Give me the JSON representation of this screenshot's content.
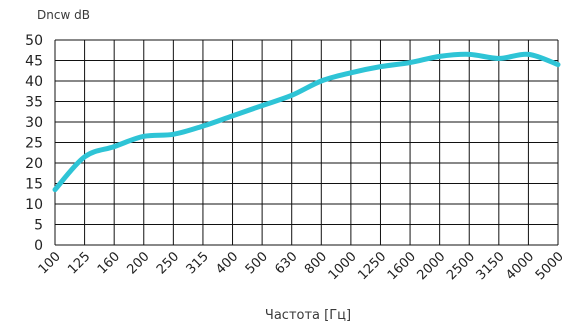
{
  "chart_data": {
    "type": "line",
    "ylabel": "Dncw dB",
    "xlabel": "Частота [Гц]",
    "categories": [
      "100",
      "125",
      "160",
      "200",
      "250",
      "315",
      "400",
      "500",
      "630",
      "800",
      "1000",
      "1250",
      "1600",
      "2000",
      "2500",
      "3150",
      "4000",
      "5000"
    ],
    "ylim": [
      0,
      50
    ],
    "yticks": [
      0,
      5,
      10,
      15,
      20,
      25,
      30,
      35,
      40,
      45,
      50
    ],
    "grid": true,
    "series": [
      {
        "values": [
          13.5,
          21.5,
          24,
          26.5,
          27,
          29,
          31.5,
          34,
          36.5,
          40,
          42,
          43.5,
          44.5,
          46,
          46.5,
          45.5,
          46.5,
          44
        ]
      }
    ],
    "line_color": "#2ec4d6"
  }
}
